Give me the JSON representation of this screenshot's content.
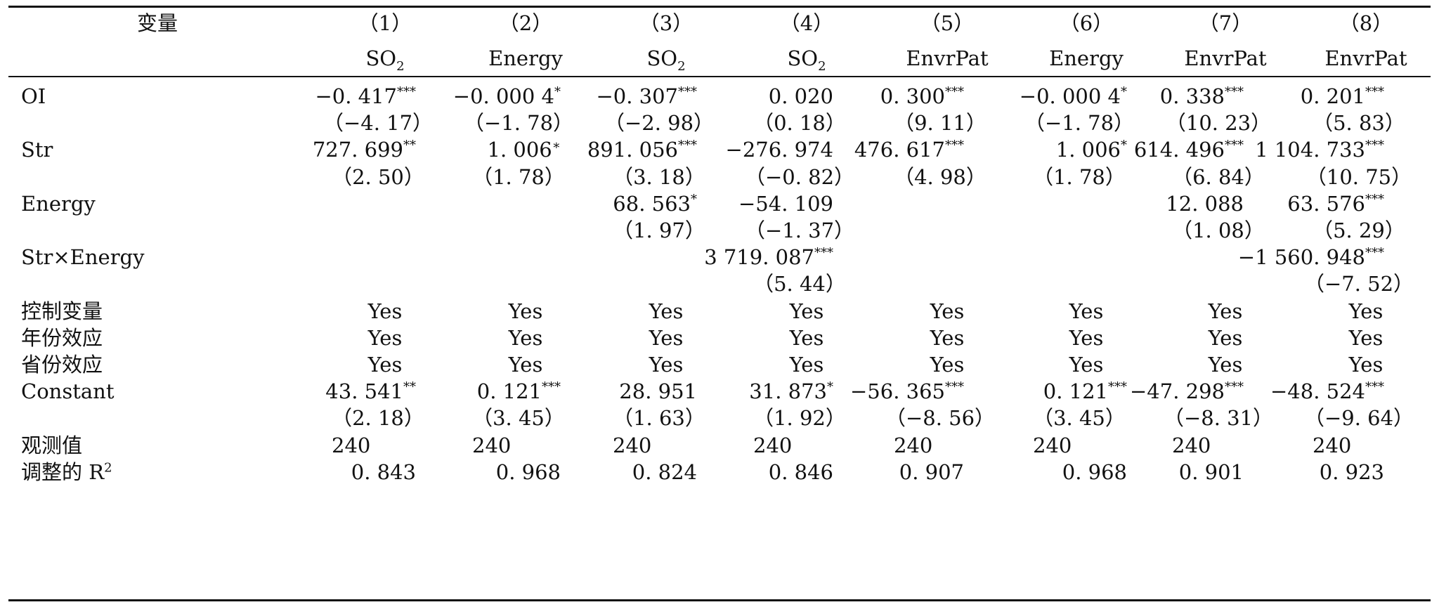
{
  "table": {
    "header": {
      "variable_label": "变量",
      "columns": [
        {
          "num": "（1）",
          "dep": "SO",
          "dep_sub": "2"
        },
        {
          "num": "（2）",
          "dep": "Energy",
          "dep_sub": ""
        },
        {
          "num": "（3）",
          "dep": "SO",
          "dep_sub": "2"
        },
        {
          "num": "（4）",
          "dep": "SO",
          "dep_sub": "2"
        },
        {
          "num": "（5）",
          "dep": "EnvrPat",
          "dep_sub": ""
        },
        {
          "num": "（6）",
          "dep": "Energy",
          "dep_sub": ""
        },
        {
          "num": "（7）",
          "dep": "EnvrPat",
          "dep_sub": ""
        },
        {
          "num": "（8）",
          "dep": "EnvrPat",
          "dep_sub": ""
        }
      ]
    },
    "rows": [
      {
        "label": "OI",
        "cells": [
          {
            "v": "−0. 417",
            "s": "***"
          },
          {
            "v": "−0. 000 4",
            "s": "*"
          },
          {
            "v": "−0. 307",
            "s": "***"
          },
          {
            "v": "0. 020",
            "s": ""
          },
          {
            "v": "0. 300",
            "s": "***"
          },
          {
            "v": "−0. 000 4",
            "s": "*"
          },
          {
            "v": "0. 338",
            "s": "***"
          },
          {
            "v": "0. 201",
            "s": "***"
          }
        ]
      },
      {
        "label": "",
        "cells": [
          {
            "v": "（−4. 17）",
            "s": ""
          },
          {
            "v": "（−1. 78）",
            "s": ""
          },
          {
            "v": "（−2. 98）",
            "s": ""
          },
          {
            "v": "（0. 18）",
            "s": ""
          },
          {
            "v": "（9. 11）",
            "s": ""
          },
          {
            "v": "（−1. 78）",
            "s": ""
          },
          {
            "v": "（10. 23）",
            "s": ""
          },
          {
            "v": "（5. 83）",
            "s": ""
          }
        ]
      },
      {
        "label": "Str",
        "cells": [
          {
            "v": "727. 699",
            "s": "**"
          },
          {
            "v": "1. 006",
            "s": "∗"
          },
          {
            "v": "891. 056",
            "s": "***"
          },
          {
            "v": "−276. 974",
            "s": ""
          },
          {
            "v": "476. 617",
            "s": "***"
          },
          {
            "v": "1. 006",
            "s": "*"
          },
          {
            "v": "614. 496",
            "s": "***"
          },
          {
            "v": "1 104. 733",
            "s": "***"
          }
        ]
      },
      {
        "label": "",
        "cells": [
          {
            "v": "（2. 50）",
            "s": ""
          },
          {
            "v": "（1. 78）",
            "s": ""
          },
          {
            "v": "（3. 18）",
            "s": ""
          },
          {
            "v": "（−0. 82）",
            "s": ""
          },
          {
            "v": "（4. 98）",
            "s": ""
          },
          {
            "v": "（1. 78）",
            "s": ""
          },
          {
            "v": "（6. 84）",
            "s": ""
          },
          {
            "v": "（10. 75）",
            "s": ""
          }
        ]
      },
      {
        "label": "Energy",
        "cells": [
          {
            "v": "",
            "s": ""
          },
          {
            "v": "",
            "s": ""
          },
          {
            "v": "68. 563",
            "s": "*"
          },
          {
            "v": "−54. 109",
            "s": ""
          },
          {
            "v": "",
            "s": ""
          },
          {
            "v": "",
            "s": ""
          },
          {
            "v": "12. 088",
            "s": ""
          },
          {
            "v": "63. 576",
            "s": "***"
          }
        ]
      },
      {
        "label": "",
        "cells": [
          {
            "v": "",
            "s": ""
          },
          {
            "v": "",
            "s": ""
          },
          {
            "v": "（1. 97）",
            "s": ""
          },
          {
            "v": "（−1. 37）",
            "s": ""
          },
          {
            "v": "",
            "s": ""
          },
          {
            "v": "",
            "s": ""
          },
          {
            "v": "（1. 08）",
            "s": ""
          },
          {
            "v": "（5. 29）",
            "s": ""
          }
        ]
      },
      {
        "label": "Str×Energy",
        "cells": [
          {
            "v": "",
            "s": ""
          },
          {
            "v": "",
            "s": ""
          },
          {
            "v": "",
            "s": ""
          },
          {
            "v": "3 719. 087",
            "s": "***"
          },
          {
            "v": "",
            "s": ""
          },
          {
            "v": "",
            "s": ""
          },
          {
            "v": "",
            "s": ""
          },
          {
            "v": "−1 560. 948",
            "s": "***"
          }
        ]
      },
      {
        "label": "",
        "cells": [
          {
            "v": "",
            "s": ""
          },
          {
            "v": "",
            "s": ""
          },
          {
            "v": "",
            "s": ""
          },
          {
            "v": "（5. 44）",
            "s": ""
          },
          {
            "v": "",
            "s": ""
          },
          {
            "v": "",
            "s": ""
          },
          {
            "v": "",
            "s": ""
          },
          {
            "v": "（−7. 52）",
            "s": ""
          }
        ]
      },
      {
        "label": "控制变量",
        "cells": [
          {
            "v": "Yes",
            "s": ""
          },
          {
            "v": "Yes",
            "s": ""
          },
          {
            "v": "Yes",
            "s": ""
          },
          {
            "v": "Yes",
            "s": ""
          },
          {
            "v": "Yes",
            "s": ""
          },
          {
            "v": "Yes",
            "s": ""
          },
          {
            "v": "Yes",
            "s": ""
          },
          {
            "v": "Yes",
            "s": ""
          }
        ]
      },
      {
        "label": "年份效应",
        "cells": [
          {
            "v": "Yes",
            "s": ""
          },
          {
            "v": "Yes",
            "s": ""
          },
          {
            "v": "Yes",
            "s": ""
          },
          {
            "v": "Yes",
            "s": ""
          },
          {
            "v": "Yes",
            "s": ""
          },
          {
            "v": "Yes",
            "s": ""
          },
          {
            "v": "Yes",
            "s": ""
          },
          {
            "v": "Yes",
            "s": ""
          }
        ]
      },
      {
        "label": "省份效应",
        "cells": [
          {
            "v": "Yes",
            "s": ""
          },
          {
            "v": "Yes",
            "s": ""
          },
          {
            "v": "Yes",
            "s": ""
          },
          {
            "v": "Yes",
            "s": ""
          },
          {
            "v": "Yes",
            "s": ""
          },
          {
            "v": "Yes",
            "s": ""
          },
          {
            "v": "Yes",
            "s": ""
          },
          {
            "v": "Yes",
            "s": ""
          }
        ]
      },
      {
        "label": "Constant",
        "cells": [
          {
            "v": "43. 541",
            "s": "**"
          },
          {
            "v": "0. 121",
            "s": "***"
          },
          {
            "v": "28. 951",
            "s": ""
          },
          {
            "v": "31. 873",
            "s": "*"
          },
          {
            "v": "−56. 365",
            "s": "***"
          },
          {
            "v": "0. 121",
            "s": "***"
          },
          {
            "v": "−47. 298",
            "s": "***"
          },
          {
            "v": "−48. 524",
            "s": "***"
          }
        ]
      },
      {
        "label": "",
        "cells": [
          {
            "v": "（2. 18）",
            "s": ""
          },
          {
            "v": "（3. 45）",
            "s": ""
          },
          {
            "v": "（1. 63）",
            "s": ""
          },
          {
            "v": "（1. 92）",
            "s": ""
          },
          {
            "v": "（−8. 56）",
            "s": ""
          },
          {
            "v": "（3. 45）",
            "s": ""
          },
          {
            "v": "（−8. 31）",
            "s": ""
          },
          {
            "v": "（−9. 64）",
            "s": ""
          }
        ]
      },
      {
        "label": "观测值",
        "cells": [
          {
            "v": "240",
            "s": ""
          },
          {
            "v": "240",
            "s": ""
          },
          {
            "v": "240",
            "s": ""
          },
          {
            "v": "240",
            "s": ""
          },
          {
            "v": "240",
            "s": ""
          },
          {
            "v": "240",
            "s": ""
          },
          {
            "v": "240",
            "s": ""
          },
          {
            "v": "240",
            "s": ""
          }
        ]
      },
      {
        "label": "调整的 R",
        "label_sup": "2",
        "cells": [
          {
            "v": "0. 843",
            "s": ""
          },
          {
            "v": "0. 968",
            "s": ""
          },
          {
            "v": "0. 824",
            "s": ""
          },
          {
            "v": "0. 846",
            "s": ""
          },
          {
            "v": "0. 907",
            "s": ""
          },
          {
            "v": "0. 968",
            "s": ""
          },
          {
            "v": "0. 901",
            "s": ""
          },
          {
            "v": "0. 923",
            "s": ""
          }
        ]
      }
    ]
  }
}
